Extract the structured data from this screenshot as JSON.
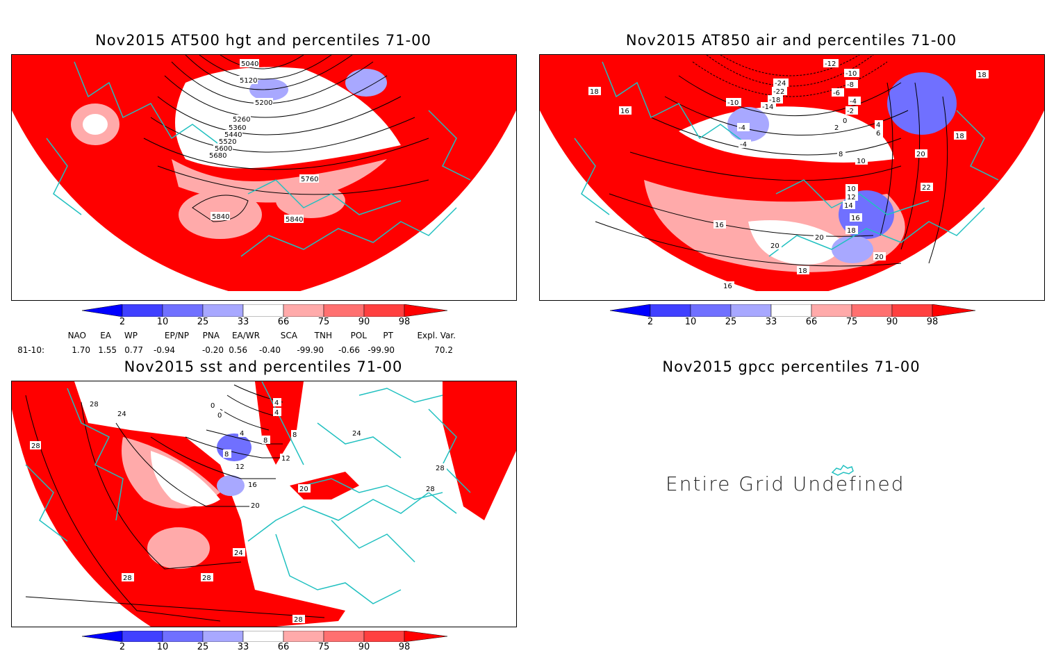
{
  "panels": [
    {
      "id": "hgt",
      "title": "Nov2015 AT500 hgt and percentiles 71-00",
      "contour_labels": [
        "5040",
        "5120",
        "5200",
        "5260",
        "5360",
        "5440",
        "5520",
        "5600",
        "5680",
        "5760",
        "5840",
        "5840"
      ]
    },
    {
      "id": "air",
      "title": "Nov2015 AT850 air and percentiles 71-00",
      "contour_labels": [
        "-12",
        "-10",
        "-8",
        "-6",
        "-4",
        "-2",
        "0",
        "2",
        "4",
        "6",
        "8",
        "10",
        "-24",
        "-22",
        "-18",
        "-14",
        "-10",
        "-4",
        "-4",
        "18",
        "18",
        "16",
        "20",
        "18",
        "10",
        "12",
        "14",
        "16",
        "18",
        "20",
        "20",
        "22",
        "16",
        "16",
        "18",
        "20"
      ]
    },
    {
      "id": "sst",
      "title": "Nov2015 sst and percentiles 71-00",
      "contour_labels": [
        "28",
        "24",
        "28",
        "0",
        "0",
        "4",
        "4",
        "8",
        "8",
        "12",
        "12",
        "16",
        "20",
        "20",
        "24",
        "28",
        "28",
        "28",
        "28",
        "24",
        "28",
        "4",
        "8"
      ]
    },
    {
      "id": "gpcc",
      "title": "Nov2015 gpcc percentiles 71-00",
      "message": "Entire Grid Undefined"
    }
  ],
  "colorbar": {
    "labels": [
      "2",
      "10",
      "25",
      "33",
      "66",
      "75",
      "90",
      "98"
    ],
    "colors": {
      "blue_dark": "#0000ff",
      "blue_mid": "#4040ff",
      "blue_light": "#7070ff",
      "blue_pale": "#a8a8ff",
      "white": "#ffffff",
      "red_pale": "#ffaaaa",
      "red_light": "#ff7070",
      "red_mid": "#ff4040",
      "red_dark": "#ff0000"
    }
  },
  "indices": {
    "headers": [
      "NAO",
      "EA",
      "WP",
      "EP/NP",
      "PNA",
      "EA/WR",
      "SCA",
      "TNH",
      "POL",
      "PT",
      "Expl. Var."
    ],
    "row_label": "81-10:",
    "values": [
      "1.70",
      "1.55",
      "0.77",
      "-0.94",
      "-0.20",
      "0.56",
      "-0.40",
      "-99.90",
      "-0.66",
      "-99.90",
      "70.2"
    ]
  },
  "colors": {
    "land_outline": "#20c0c0",
    "field_red": "#ff0000",
    "contour": "#000000"
  }
}
